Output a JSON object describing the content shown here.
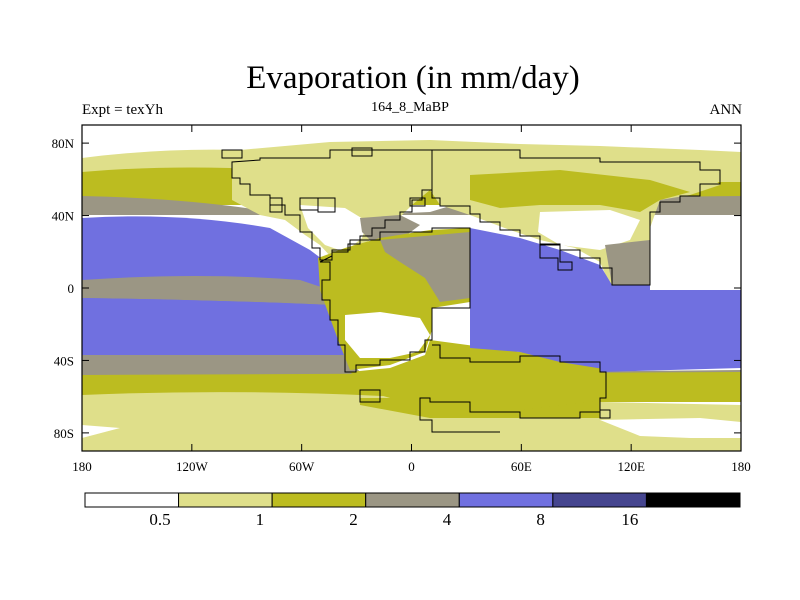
{
  "title": "Evaporation (in mm/day)",
  "subtitle_left": "Expt = texYh",
  "subtitle_center": "164_8_MaBP",
  "subtitle_right": "ANN",
  "map": {
    "x_ticks": [
      "180",
      "120W",
      "60W",
      "0",
      "60E",
      "120E",
      "180"
    ],
    "y_ticks": [
      "80N",
      "40N",
      "0",
      "40S",
      "80S"
    ],
    "projection": "cylindrical equidistant"
  },
  "colorbar": {
    "colors": [
      "#ffffff",
      "#dfdf8a",
      "#bcbc20",
      "#9b9684",
      "#7070e0",
      "#45458f",
      "#000000"
    ],
    "labels": [
      "0.5",
      "1",
      "2",
      "4",
      "8",
      "16"
    ]
  }
}
